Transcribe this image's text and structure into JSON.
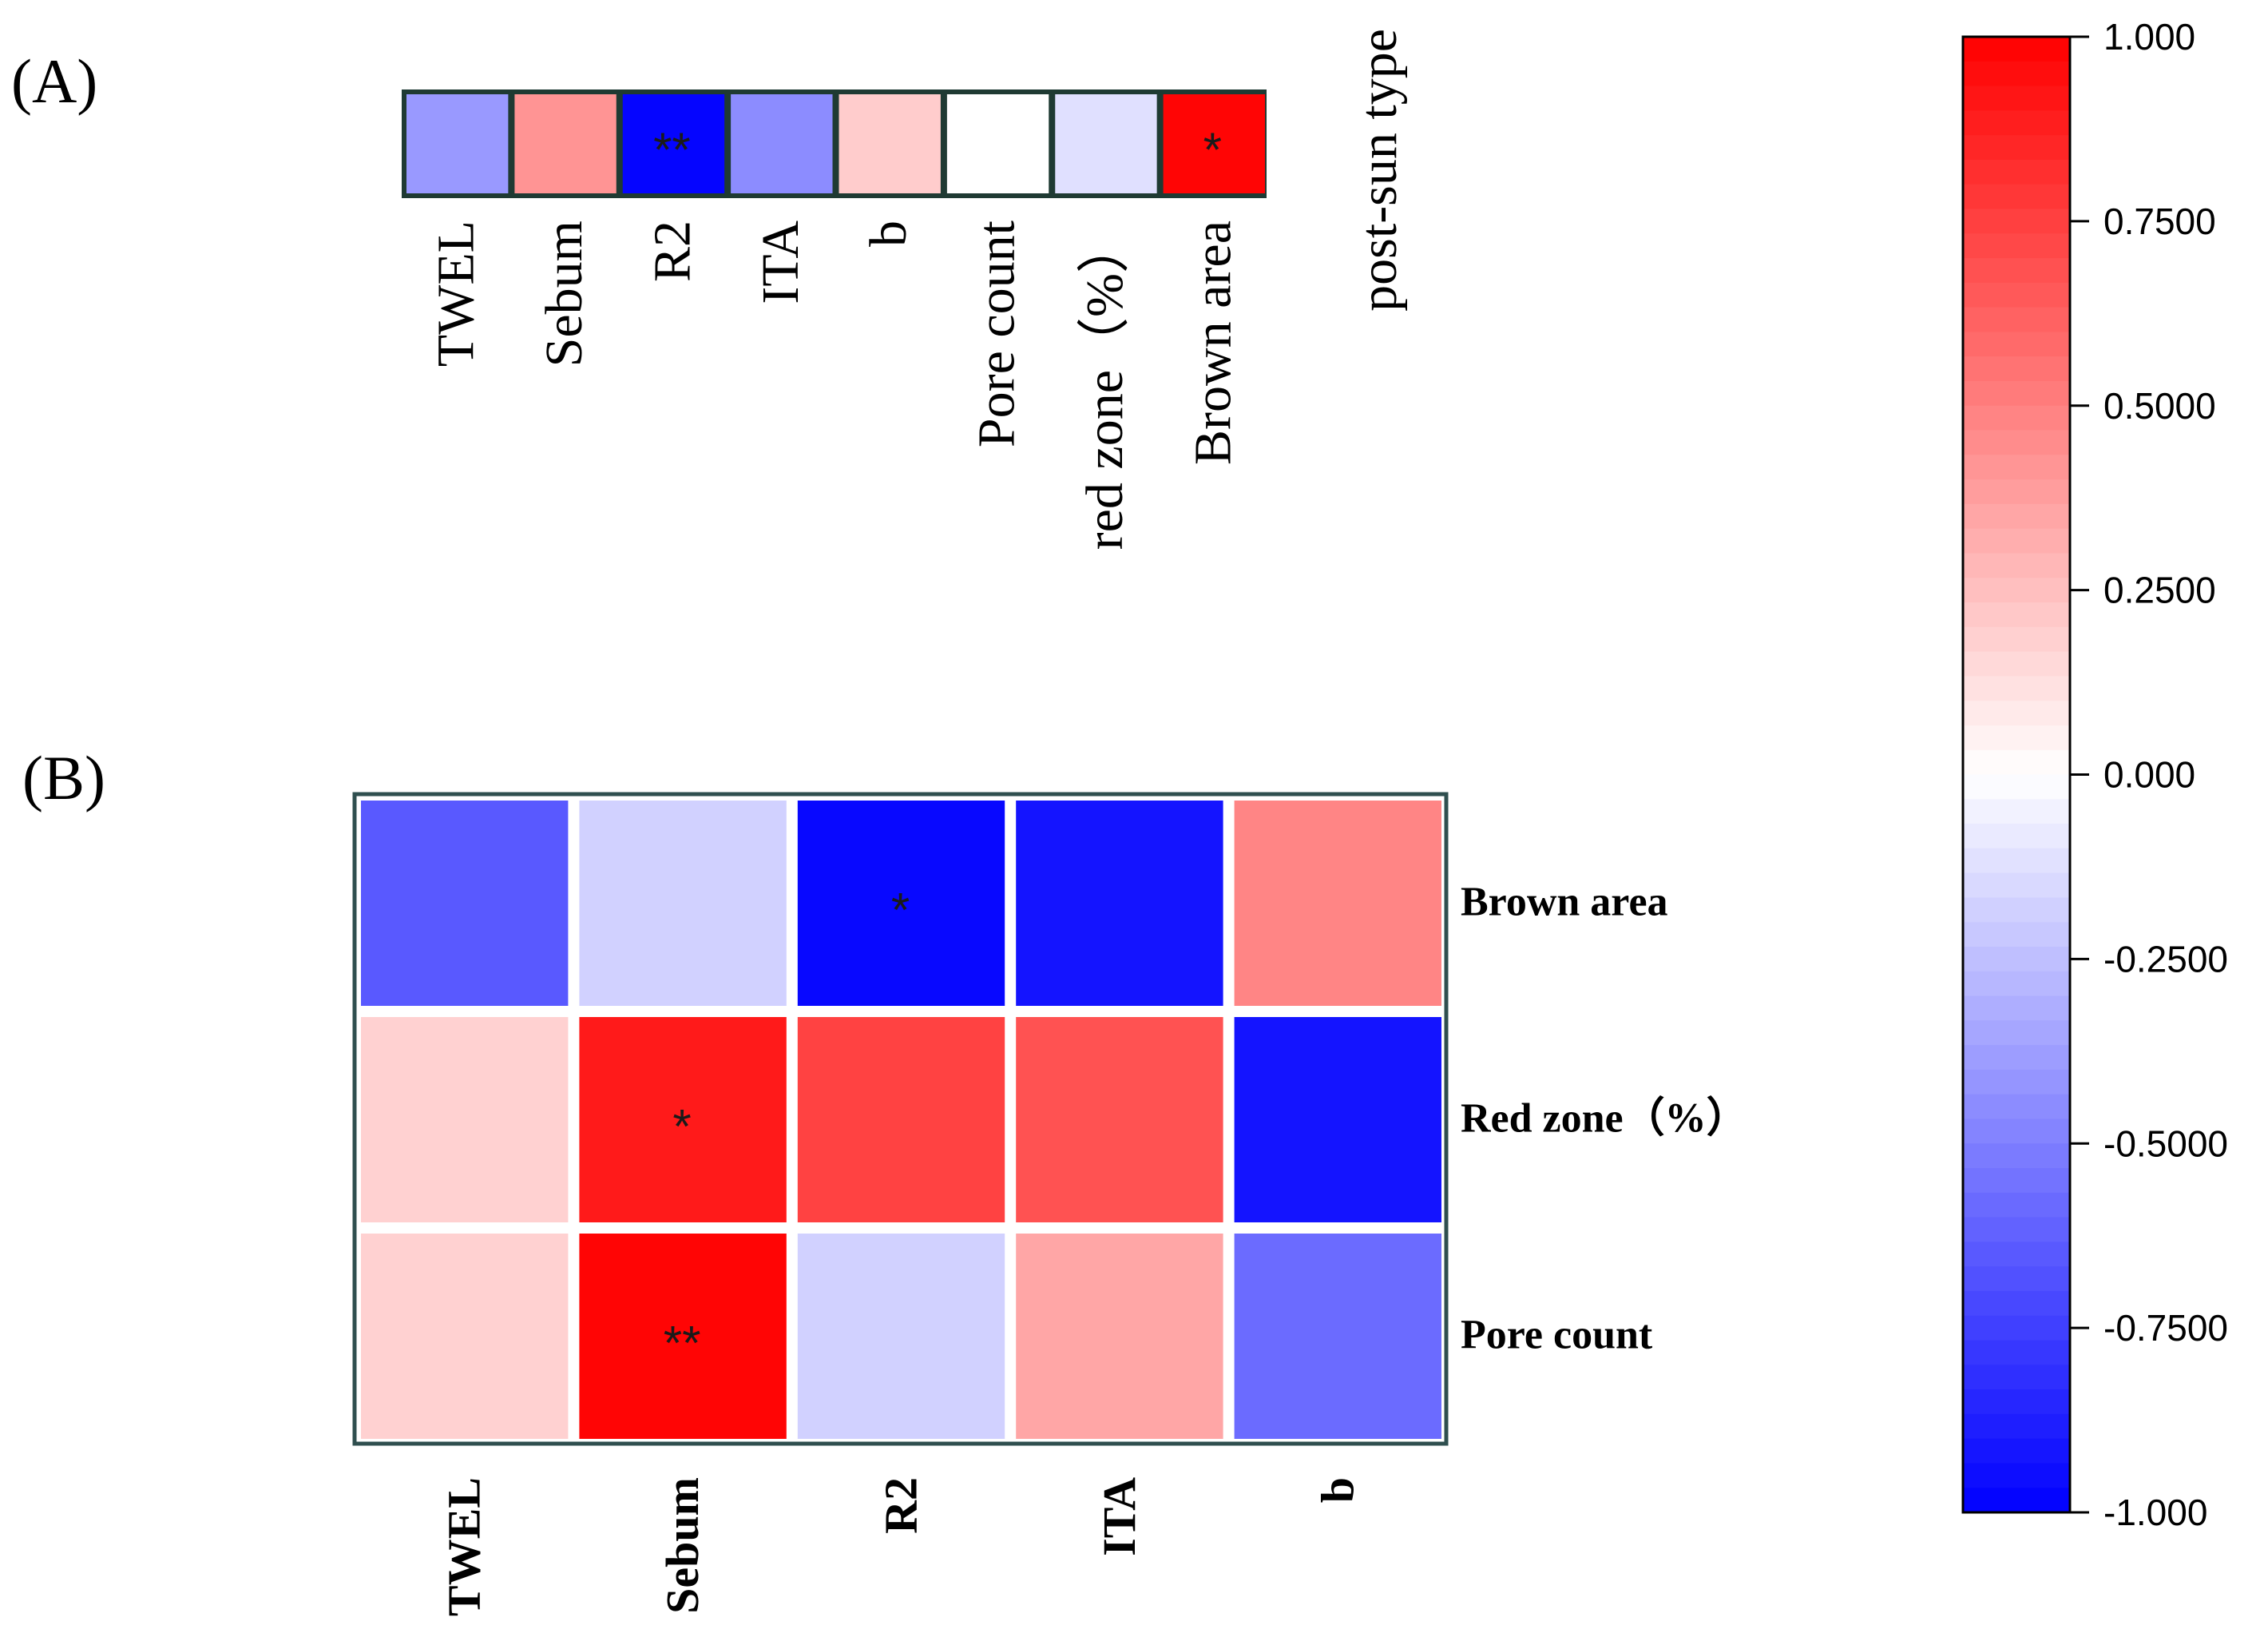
{
  "chart_data": [
    {
      "panel": "(A)",
      "type": "heatmap",
      "row_label": "post-sun type",
      "columns": [
        "TWEL",
        "Sebum",
        "R2",
        "ITA",
        "b",
        "Pore count",
        "red zone（%）",
        "Brown area"
      ],
      "values": [
        -0.4,
        0.42,
        -0.98,
        -0.45,
        0.2,
        0.0,
        -0.12,
        0.98
      ],
      "significance": [
        "",
        "",
        "**",
        "",
        "",
        "",
        "",
        "*"
      ]
    },
    {
      "panel": "(B)",
      "type": "heatmap",
      "columns": [
        "TWEL",
        "Sebum",
        "R2",
        "ITA",
        "b"
      ],
      "rows": [
        "Brown area",
        "Red zone（%）",
        "Pore count"
      ],
      "values": [
        [
          -0.65,
          -0.18,
          -0.97,
          -0.92,
          0.48
        ],
        [
          0.18,
          0.9,
          0.74,
          0.68,
          -0.92
        ],
        [
          0.18,
          0.98,
          -0.18,
          0.35,
          -0.58
        ]
      ],
      "significance": [
        [
          "",
          "",
          "*",
          "",
          ""
        ],
        [
          "",
          "*",
          "",
          "",
          ""
        ],
        [
          "",
          "**",
          "",
          "",
          ""
        ]
      ]
    }
  ],
  "colorbar": {
    "min": -1.0,
    "max": 1.0,
    "ticks": [
      1.0,
      0.75,
      0.5,
      0.25,
      0.0,
      -0.25,
      -0.5,
      -0.75,
      -1.0
    ],
    "tick_labels": [
      "1.000",
      "0.7500",
      "0.5000",
      "0.2500",
      "0.000",
      "-0.2500",
      "-0.5000",
      "-0.7500",
      "-1.000"
    ],
    "colors": {
      "negative": "#0000ff",
      "neutral": "#ffffff",
      "positive": "#ff0000"
    }
  }
}
